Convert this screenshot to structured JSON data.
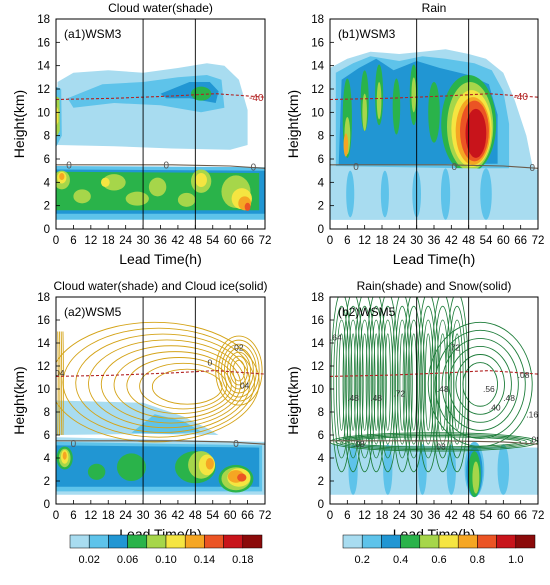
{
  "chart_data": {
    "type": "heatmap",
    "x_ticks": [
      "0",
      "6",
      "12",
      "18",
      "24",
      "30",
      "36",
      "42",
      "48",
      "54",
      "60",
      "66",
      "72"
    ],
    "y_ticks": [
      "0",
      "2",
      "4",
      "6",
      "8",
      "10",
      "12",
      "14",
      "16",
      "18"
    ],
    "xlabel": "Lead Time(h)",
    "ylabel": "Height(km)",
    "xlim": [
      0,
      72
    ],
    "ylim": [
      0,
      18
    ],
    "vertical_lines_x": [
      30,
      48
    ],
    "panels": [
      {
        "title": "Cloud water(shade)",
        "tag": "(a1)WSM3",
        "shade_field": "cloud water",
        "isotherm_labels": [
          {
            "text": "-40",
            "x": 69,
            "y": 11.3,
            "color": "#b22222"
          },
          {
            "text": "0",
            "x": 4.5,
            "y": 5.55,
            "color": "#555555"
          },
          {
            "text": "0",
            "x": 38,
            "y": 5.55,
            "color": "#555555"
          },
          {
            "text": "0",
            "x": 68,
            "y": 5.35,
            "color": "#555555"
          }
        ],
        "contour_labels": []
      },
      {
        "title": "Rain",
        "tag": "(b1)WSM3",
        "shade_field": "rain",
        "isotherm_labels": [
          {
            "text": "-40",
            "x": 66,
            "y": 11.4,
            "color": "#b22222"
          },
          {
            "text": "0",
            "x": 9,
            "y": 5.4,
            "color": "#555555"
          },
          {
            "text": "0",
            "x": 43,
            "y": 5.4,
            "color": "#555555"
          },
          {
            "text": "0",
            "x": 70,
            "y": 5.3,
            "color": "#555555"
          }
        ],
        "contour_labels": []
      },
      {
        "title": "Cloud water(shade) and Cloud ice(solid)",
        "tag": "(a2)WSM5",
        "shade_field": "cloud water",
        "isotherm_labels": [
          {
            "text": "0",
            "x": 6,
            "y": 5.3,
            "color": "#555555"
          },
          {
            "text": "0",
            "x": 62,
            "y": 5.3,
            "color": "#555555"
          }
        ],
        "contour_labels": [
          {
            "text": "02",
            "x": 63,
            "y": 13.6
          },
          {
            "text": "04",
            "x": 65,
            "y": 10.3
          },
          {
            "text": "0",
            "x": 53,
            "y": 12.3
          },
          {
            "text": "04",
            "x": 1.3,
            "y": 11.4
          }
        ],
        "contour_color": "#d4a317"
      },
      {
        "title": "Rain(shade) and Snow(solid)",
        "tag": "(b2)WSM5",
        "shade_field": "rain",
        "isotherm_labels": [],
        "contour_labels": [
          {
            "text": ".64",
            "x": 2,
            "y": 14.5
          },
          {
            "text": ".48",
            "x": 8,
            "y": 9.2
          },
          {
            "text": ".48",
            "x": 16,
            "y": 9.2
          },
          {
            "text": ".72",
            "x": 24,
            "y": 9.6
          },
          {
            "text": ".72",
            "x": 43,
            "y": 13.6
          },
          {
            "text": ".48",
            "x": 39,
            "y": 10
          },
          {
            "text": ".48",
            "x": 62,
            "y": 9.2
          },
          {
            "text": ".56",
            "x": 55,
            "y": 10
          },
          {
            "text": ".40",
            "x": 57,
            "y": 8.4
          },
          {
            "text": ".08",
            "x": 67,
            "y": 11.2
          },
          {
            "text": ".16",
            "x": 70,
            "y": 7.8
          },
          {
            "text": ".08",
            "x": 10,
            "y": 5.2
          },
          {
            "text": ".08",
            "x": 38,
            "y": 5
          },
          {
            "text": ".08",
            "x": 71,
            "y": 5.6
          }
        ],
        "contour_color": "#1e7d3a"
      }
    ],
    "colorbars": [
      {
        "labels": [
          "0.02",
          "0.06",
          "0.10",
          "0.14",
          "0.18"
        ],
        "colors": [
          "#a8dcf0",
          "#5ec3ea",
          "#2196d3",
          "#2ab34a",
          "#a6d64a",
          "#f5e541",
          "#f5a623",
          "#eb5424",
          "#c8141b",
          "#8b0a0a"
        ]
      },
      {
        "labels": [
          "0.2",
          "0.4",
          "0.6",
          "0.8",
          "1.0"
        ],
        "colors": [
          "#a8dcf0",
          "#5ec3ea",
          "#2196d3",
          "#2ab34a",
          "#a6d64a",
          "#f5e541",
          "#f5a623",
          "#eb5424",
          "#c8141b",
          "#8b0a0a"
        ]
      }
    ]
  }
}
